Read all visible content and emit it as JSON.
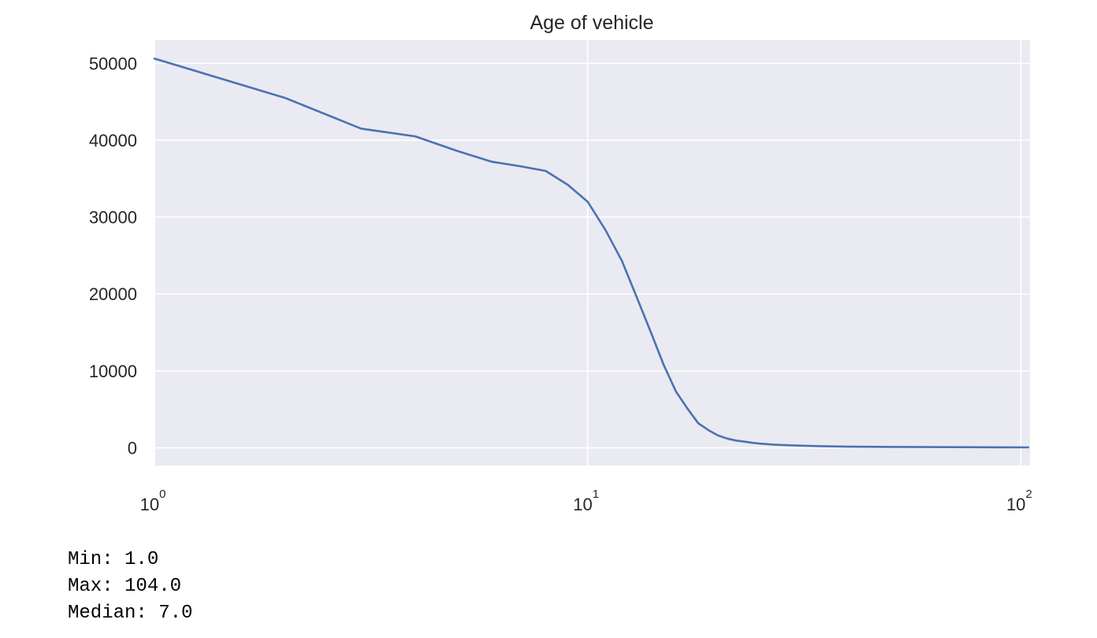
{
  "chart_data": {
    "type": "line",
    "title": "Age of vehicle",
    "xlabel": "",
    "ylabel": "",
    "x_scale": "log",
    "xlim": [
      1,
      105
    ],
    "ylim": [
      -2300,
      53000
    ],
    "x_ticks": [
      {
        "value": 1,
        "base": "10",
        "exp": "0"
      },
      {
        "value": 10,
        "base": "10",
        "exp": "1"
      },
      {
        "value": 100,
        "base": "10",
        "exp": "2"
      }
    ],
    "y_ticks": [
      0,
      10000,
      20000,
      30000,
      40000,
      50000
    ],
    "y_tick_labels": [
      "0",
      "10000",
      "20000",
      "30000",
      "40000",
      "50000"
    ],
    "grid": true,
    "background": "#eaeaf2",
    "line_color": "#4c72b0",
    "series": [
      {
        "x": [
          1,
          2,
          3,
          4,
          5,
          6,
          7,
          8,
          9,
          10,
          11,
          12,
          13,
          14,
          15,
          16,
          17,
          18,
          19,
          20,
          21,
          22,
          23,
          24,
          25,
          27,
          30,
          35,
          40,
          50,
          60,
          70,
          80,
          90,
          104
        ],
        "values": [
          50600,
          45500,
          41500,
          40500,
          38600,
          37200,
          36600,
          36000,
          34200,
          32000,
          28300,
          24300,
          19500,
          15000,
          10700,
          7300,
          5100,
          3200,
          2300,
          1600,
          1200,
          950,
          800,
          650,
          550,
          400,
          300,
          200,
          150,
          120,
          100,
          90,
          80,
          70,
          60
        ]
      }
    ]
  },
  "stats": {
    "min": "Min: 1.0",
    "max": "Max: 104.0",
    "median": "Median: 7.0"
  }
}
